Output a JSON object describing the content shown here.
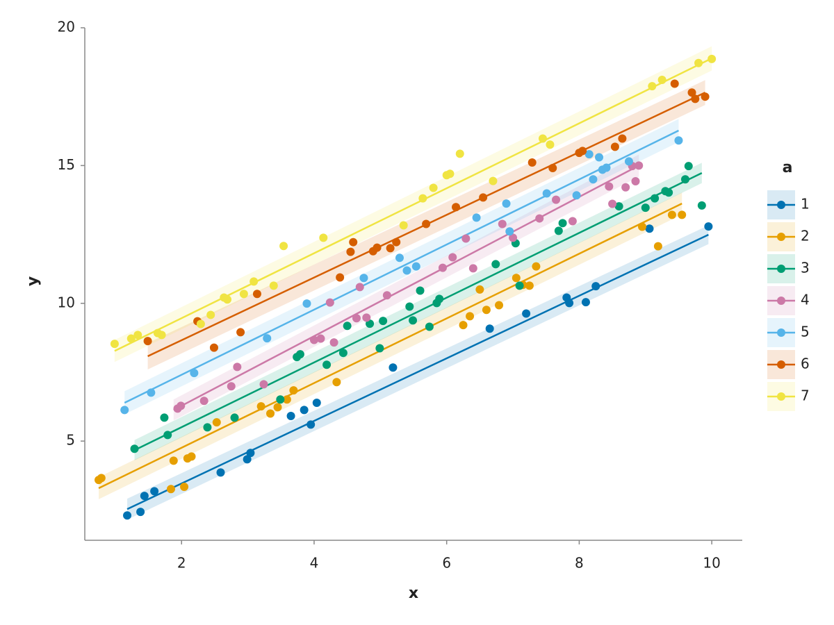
{
  "chart_data": {
    "type": "scatter",
    "x_label": "x",
    "y_label": "y",
    "legend_title": "a",
    "legend": "right",
    "xlim": [
      0.54,
      10.46
    ],
    "ylim": [
      1.4,
      20
    ],
    "xticks": [
      2,
      4,
      6,
      8,
      10
    ],
    "yticks": [
      5,
      10,
      15,
      20
    ],
    "series": [
      {
        "name": "1",
        "color": "#0072b2",
        "x": [
          1.18,
          1.38,
          1.44,
          1.59,
          2.59,
          2.99,
          3.04,
          3.65,
          3.85,
          3.95,
          4.04,
          5.19,
          6.65,
          7.2,
          7.81,
          7.85,
          8.1,
          8.25,
          9.06,
          9.95
        ],
        "y": [
          2.3,
          2.43,
          3.01,
          3.18,
          3.86,
          4.34,
          4.57,
          5.91,
          6.13,
          5.6,
          6.39,
          7.67,
          9.08,
          9.63,
          10.21,
          10.01,
          10.04,
          10.62,
          12.71,
          12.79
        ],
        "fit": {
          "x": [
            1.18,
            9.95
          ],
          "y": [
            2.53,
            12.49
          ],
          "lower": [
            2.15,
            12.15
          ],
          "upper": [
            2.91,
            12.83
          ]
        }
      },
      {
        "name": "2",
        "color": "#e69f00",
        "x": [
          0.75,
          0.79,
          1.84,
          1.88,
          2.04,
          2.09,
          2.15,
          2.53,
          3.2,
          3.34,
          3.45,
          3.59,
          3.69,
          4.34,
          6.25,
          6.35,
          6.5,
          6.6,
          6.79,
          7.05,
          7.15,
          7.25,
          7.35,
          8.95,
          9.19,
          9.4,
          9.55
        ],
        "y": [
          3.59,
          3.66,
          3.26,
          4.29,
          3.34,
          4.37,
          4.44,
          5.68,
          6.26,
          6.0,
          6.23,
          6.51,
          6.84,
          7.14,
          9.21,
          9.53,
          10.5,
          9.76,
          9.93,
          10.92,
          10.67,
          10.64,
          11.34,
          12.78,
          12.07,
          13.21,
          13.21
        ],
        "fit": {
          "x": [
            0.75,
            9.55
          ],
          "y": [
            3.29,
            13.62
          ],
          "lower": [
            2.89,
            13.22
          ],
          "upper": [
            3.69,
            14.02
          ]
        }
      },
      {
        "name": "3",
        "color": "#009e73",
        "x": [
          1.29,
          1.74,
          1.79,
          2.39,
          2.8,
          3.49,
          3.74,
          3.79,
          4.19,
          4.44,
          4.5,
          4.84,
          4.99,
          5.04,
          5.44,
          5.49,
          5.6,
          5.74,
          5.85,
          5.89,
          6.74,
          7.04,
          7.1,
          7.69,
          7.75,
          8.6,
          9.0,
          9.14,
          9.3,
          9.35,
          9.6,
          9.65,
          9.85
        ],
        "y": [
          4.72,
          5.85,
          5.22,
          5.5,
          5.85,
          6.51,
          8.05,
          8.15,
          7.77,
          8.2,
          9.18,
          9.26,
          8.37,
          9.36,
          9.88,
          9.38,
          10.46,
          9.15,
          10.01,
          10.16,
          11.42,
          12.18,
          10.64,
          12.63,
          12.91,
          13.52,
          13.47,
          13.81,
          14.07,
          14.02,
          14.5,
          14.98,
          13.55
        ],
        "fit": {
          "x": [
            1.29,
            9.85
          ],
          "y": [
            4.67,
            14.73
          ],
          "lower": [
            4.3,
            14.36
          ],
          "upper": [
            5.04,
            15.1
          ]
        }
      },
      {
        "name": "4",
        "color": "#cc79a7",
        "x": [
          1.94,
          1.99,
          2.34,
          2.75,
          2.84,
          3.24,
          4.0,
          4.1,
          4.24,
          4.3,
          4.64,
          4.69,
          4.79,
          5.1,
          5.94,
          6.09,
          6.29,
          6.4,
          6.84,
          7.0,
          7.4,
          7.65,
          7.9,
          8.45,
          8.5,
          8.7,
          8.8,
          8.85,
          8.9
        ],
        "y": [
          6.18,
          6.28,
          6.46,
          6.99,
          7.69,
          7.06,
          8.67,
          8.72,
          10.03,
          8.58,
          9.46,
          10.59,
          9.48,
          10.29,
          11.29,
          11.67,
          12.35,
          11.27,
          12.88,
          12.38,
          13.08,
          13.76,
          12.98,
          14.24,
          13.61,
          14.21,
          14.98,
          14.43,
          15.0
        ],
        "fit": {
          "x": [
            1.88,
            8.9
          ],
          "y": [
            6.13,
            15.0
          ],
          "lower": [
            5.75,
            14.6
          ],
          "upper": [
            6.51,
            15.4
          ]
        }
      },
      {
        "name": "5",
        "color": "#56b4e9",
        "x": [
          1.14,
          1.54,
          2.19,
          3.29,
          3.89,
          4.75,
          5.29,
          5.4,
          5.54,
          6.45,
          6.9,
          6.95,
          7.51,
          7.96,
          8.15,
          8.21,
          8.3,
          8.35,
          8.41,
          8.75,
          9.5
        ],
        "y": [
          6.13,
          6.76,
          7.47,
          8.73,
          9.99,
          10.92,
          11.65,
          11.19,
          11.34,
          13.11,
          13.62,
          12.61,
          13.99,
          13.92,
          15.41,
          14.5,
          15.3,
          14.85,
          14.92,
          15.15,
          15.91
        ],
        "fit": {
          "x": [
            1.14,
            9.5
          ],
          "y": [
            6.39,
            16.27
          ],
          "lower": [
            5.97,
            15.85
          ],
          "upper": [
            6.81,
            16.69
          ]
        }
      },
      {
        "name": "6",
        "color": "#d55e00",
        "x": [
          1.49,
          2.24,
          2.49,
          2.89,
          3.14,
          4.39,
          4.55,
          4.59,
          4.89,
          4.95,
          5.15,
          5.24,
          5.69,
          6.14,
          6.55,
          7.29,
          7.6,
          8.0,
          8.05,
          8.54,
          8.65,
          9.44,
          9.7,
          9.75,
          9.9
        ],
        "y": [
          8.63,
          9.35,
          8.39,
          8.95,
          10.34,
          10.94,
          11.87,
          12.22,
          11.89,
          12.02,
          12.0,
          12.22,
          12.88,
          13.49,
          13.84,
          15.11,
          14.91,
          15.46,
          15.53,
          15.68,
          15.98,
          17.97,
          17.65,
          17.42,
          17.5
        ],
        "fit": {
          "x": [
            1.49,
            9.9
          ],
          "y": [
            8.08,
            17.65
          ],
          "lower": [
            7.6,
            17.2
          ],
          "upper": [
            8.56,
            18.1
          ]
        }
      },
      {
        "name": "7",
        "color": "#f0e442",
        "x": [
          0.99,
          1.24,
          1.34,
          1.64,
          1.7,
          2.29,
          2.44,
          2.64,
          2.69,
          2.94,
          3.09,
          3.39,
          3.54,
          4.14,
          5.35,
          5.64,
          5.8,
          6.0,
          6.05,
          6.2,
          6.7,
          7.45,
          7.56,
          9.1,
          9.25,
          9.8,
          10.0
        ],
        "y": [
          8.53,
          8.72,
          8.85,
          8.92,
          8.85,
          9.25,
          9.58,
          10.21,
          10.14,
          10.34,
          10.79,
          10.64,
          12.08,
          12.38,
          12.83,
          13.81,
          14.19,
          14.65,
          14.7,
          15.43,
          14.44,
          15.98,
          15.76,
          17.88,
          18.11,
          18.72,
          18.87
        ],
        "fit": {
          "x": [
            0.99,
            10.0
          ],
          "y": [
            8.27,
            18.89
          ],
          "lower": [
            7.87,
            18.45
          ],
          "upper": [
            8.67,
            19.33
          ]
        }
      }
    ]
  }
}
